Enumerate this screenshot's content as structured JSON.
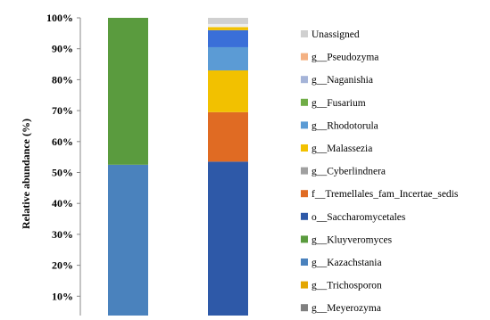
{
  "chart_data": {
    "type": "bar",
    "stacked": true,
    "title": "",
    "xlabel": "",
    "ylabel": "Relative abundance (%)",
    "ylim": [
      0,
      100
    ],
    "y_ticks": [
      "10%",
      "20%",
      "30%",
      "40%",
      "50%",
      "60%",
      "70%",
      "80%",
      "90%",
      "100%"
    ],
    "y_tick_values": [
      10,
      20,
      30,
      40,
      50,
      60,
      70,
      80,
      90,
      100
    ],
    "categories": [
      "",
      ""
    ],
    "series": [
      {
        "name": "g__Meyerozyma",
        "color": "#808080",
        "values": [
          0,
          0
        ]
      },
      {
        "name": "g__Trichosporon",
        "color": "#e3a600",
        "values": [
          0,
          0
        ]
      },
      {
        "name": "g__Kazachstania",
        "color": "#4a82bd",
        "values": [
          52.5,
          0
        ]
      },
      {
        "name": "g__Kluyveromyces",
        "color": "#5a9b3e",
        "values": [
          47.5,
          0
        ]
      },
      {
        "name": "o__Saccharomycetales",
        "color": "#2e59a8",
        "values": [
          0,
          53.5
        ]
      },
      {
        "name": "f__Tremellales_fam_Incertae_sedis",
        "color": "#e06b23",
        "values": [
          0,
          16
        ]
      },
      {
        "name": "g__Cyberlindnera",
        "color": "#a0a0a0",
        "values": [
          0,
          0
        ]
      },
      {
        "name": "g__Malassezia",
        "color": "#f2c100",
        "values": [
          0,
          13.5
        ]
      },
      {
        "name": "g__Rhodotorula",
        "color": "#5b9bd5",
        "values": [
          0,
          7.5
        ]
      },
      {
        "name": "g__Fusarium",
        "color": "#70ad47",
        "values": [
          0,
          0
        ]
      },
      {
        "name": "g__Naganishia",
        "color": "#a5b4d8",
        "values": [
          0,
          0
        ]
      },
      {
        "name": "g__Pseudozyma",
        "color": "#f4b183",
        "values": [
          0,
          0
        ]
      },
      {
        "name": "Unassigned",
        "color": "#d0d0d0",
        "values": [
          0,
          2
        ]
      }
    ],
    "extra_segments_bar2": [
      {
        "color": "#3a6fd8",
        "value": 5.5
      },
      {
        "color": "#f2c100",
        "value": 1
      },
      {
        "color": "#eeeeee",
        "value": 1
      }
    ],
    "legend": {
      "placement": "right",
      "items": [
        {
          "label": "Unassigned",
          "color": "#d0d0d0"
        },
        {
          "label": "g__Pseudozyma",
          "color": "#f4b183"
        },
        {
          "label": "g__Naganishia",
          "color": "#a5b4d8"
        },
        {
          "label": "g__Fusarium",
          "color": "#70ad47"
        },
        {
          "label": "g__Rhodotorula",
          "color": "#5b9bd5"
        },
        {
          "label": "g__Malassezia",
          "color": "#f2c100"
        },
        {
          "label": "g__Cyberlindnera",
          "color": "#a0a0a0"
        },
        {
          "label": "f__Tremellales_fam_Incertae_sedis",
          "color": "#e06b23"
        },
        {
          "label": "o__Saccharomycetales",
          "color": "#2e59a8"
        },
        {
          "label": "g__Kluyveromyces",
          "color": "#5a9b3e"
        },
        {
          "label": "g__Kazachstania",
          "color": "#4a82bd"
        },
        {
          "label": "g__Trichosporon",
          "color": "#e3a600"
        },
        {
          "label": "g__Meyerozyma",
          "color": "#808080"
        }
      ]
    },
    "grid": false
  }
}
